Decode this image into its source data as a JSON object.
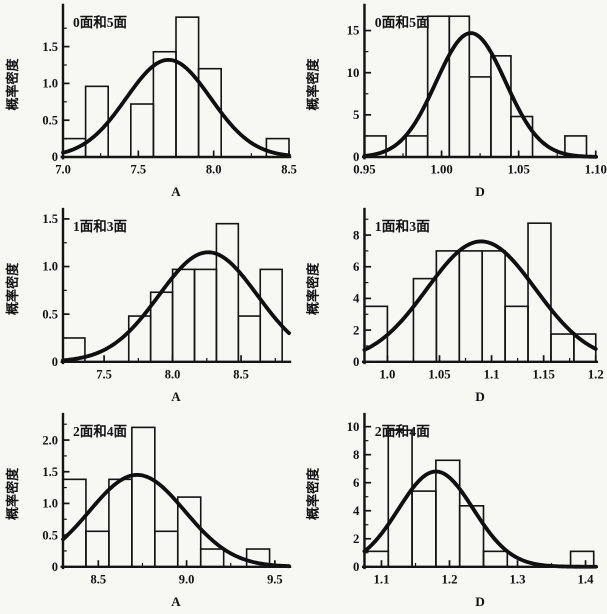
{
  "page": {
    "background": "#f7f7f4",
    "ink_color": "#141414",
    "description_labels": {
      "probability_density": "概率密度",
      "x_axis_A": "A",
      "x_axis_D": "D"
    }
  },
  "chart_data": [
    {
      "type": "bar",
      "overlay": "line",
      "title": "0面和5面",
      "xlabel": "A",
      "ylabel": "概率密度",
      "xlim": [
        7.0,
        8.5
      ],
      "ylim": [
        0,
        1.97
      ],
      "xticks": [
        7.0,
        7.5,
        8.0,
        8.5
      ],
      "xtick_labels": [
        "7.0",
        "7.5",
        "8.0",
        "8.5"
      ],
      "yticks": [
        0,
        0.5,
        1.0,
        1.5
      ],
      "ytick_labels": [
        "0",
        "0.5",
        "1.0",
        "1.5"
      ],
      "grid": false,
      "bars": [
        [
          7.0,
          7.15,
          0.25
        ],
        [
          7.15,
          7.3,
          0.96
        ],
        [
          7.45,
          7.6,
          0.72
        ],
        [
          7.6,
          7.75,
          1.43
        ],
        [
          7.75,
          7.9,
          1.9
        ],
        [
          7.9,
          8.05,
          1.2
        ],
        [
          8.35,
          8.5,
          0.25
        ]
      ],
      "curve": {
        "shape": "gaussian",
        "mu": 7.7,
        "sigma": 0.28,
        "peak": 1.32
      }
    },
    {
      "type": "bar",
      "overlay": "line",
      "title": "0面和5面",
      "xlabel": "D",
      "ylabel": "概率密度",
      "xlim": [
        0.95,
        1.1
      ],
      "ylim": [
        0,
        17.2
      ],
      "xticks": [
        0.95,
        1.0,
        1.05,
        1.1
      ],
      "xtick_labels": [
        "0.95",
        "1.00",
        "1.05",
        "1.10"
      ],
      "yticks": [
        0,
        5,
        10,
        15
      ],
      "ytick_labels": [
        "0",
        "5",
        "10",
        "15"
      ],
      "grid": false,
      "bars": [
        [
          0.95,
          0.964,
          2.5
        ],
        [
          0.977,
          0.991,
          2.5
        ],
        [
          0.991,
          1.005,
          16.7
        ],
        [
          1.005,
          1.018,
          16.7
        ],
        [
          1.018,
          1.032,
          9.5
        ],
        [
          1.032,
          1.045,
          12.0
        ],
        [
          1.045,
          1.059,
          4.8
        ],
        [
          1.08,
          1.094,
          2.5
        ]
      ],
      "curve": {
        "shape": "gaussian",
        "mu": 1.019,
        "sigma": 0.0225,
        "peak": 14.7
      }
    },
    {
      "type": "bar",
      "overlay": "line",
      "title": "1面和3面",
      "xlabel": "A",
      "ylabel": "概率密度",
      "xlim": [
        7.2,
        8.85
      ],
      "ylim": [
        0,
        1.53
      ],
      "xticks": [
        7.5,
        8.0,
        8.5
      ],
      "xtick_labels": [
        "7.5",
        "8.0",
        "8.5"
      ],
      "yticks": [
        0,
        0.5,
        1.0,
        1.5
      ],
      "ytick_labels": [
        "0",
        "0.5",
        "1.0",
        "1.5"
      ],
      "grid": false,
      "bars": [
        [
          7.2,
          7.36,
          0.25
        ],
        [
          7.68,
          7.84,
          0.48
        ],
        [
          7.84,
          8.0,
          0.73
        ],
        [
          8.0,
          8.16,
          0.97
        ],
        [
          8.16,
          8.32,
          0.97
        ],
        [
          8.32,
          8.48,
          1.45
        ],
        [
          8.48,
          8.64,
          0.48
        ],
        [
          8.64,
          8.8,
          0.97
        ]
      ],
      "curve": {
        "shape": "gaussian",
        "mu": 8.26,
        "sigma": 0.36,
        "peak": 1.15
      }
    },
    {
      "type": "bar",
      "overlay": "line",
      "title": "1面和3面",
      "xlabel": "D",
      "ylabel": "概率密度",
      "xlim": [
        0.978,
        1.2
      ],
      "ylim": [
        0,
        9.2
      ],
      "xticks": [
        1.0,
        1.05,
        1.1,
        1.15,
        1.2
      ],
      "xtick_labels": [
        "1.0",
        "1.05",
        "1.1",
        "1.15",
        "1.2"
      ],
      "yticks": [
        0,
        2,
        4,
        6,
        8
      ],
      "ytick_labels": [
        "0",
        "2",
        "4",
        "6",
        "8"
      ],
      "grid": false,
      "bars": [
        [
          0.978,
          1.0,
          3.5
        ],
        [
          1.025,
          1.047,
          5.25
        ],
        [
          1.047,
          1.069,
          7.0
        ],
        [
          1.069,
          1.091,
          7.0
        ],
        [
          1.091,
          1.113,
          7.0
        ],
        [
          1.113,
          1.135,
          3.5
        ],
        [
          1.135,
          1.157,
          8.75
        ],
        [
          1.157,
          1.179,
          1.75
        ],
        [
          1.179,
          1.2,
          1.75
        ]
      ],
      "curve": {
        "shape": "gaussian",
        "mu": 1.09,
        "sigma": 0.052,
        "peak": 7.6
      }
    },
    {
      "type": "bar",
      "overlay": "line",
      "title": "2面和4面",
      "xlabel": "A",
      "ylabel": "概率密度",
      "xlim": [
        8.3,
        9.58
      ],
      "ylim": [
        0,
        2.3
      ],
      "xticks": [
        8.5,
        9.0,
        9.5
      ],
      "xtick_labels": [
        "8.5",
        "9.0",
        "9.5"
      ],
      "yticks": [
        0,
        0.5,
        1.0,
        1.5,
        2.0
      ],
      "ytick_labels": [
        "0",
        "0.5",
        "1.0",
        "1.5",
        "2.0"
      ],
      "grid": false,
      "bars": [
        [
          8.3,
          8.43,
          1.38
        ],
        [
          8.43,
          8.56,
          0.56
        ],
        [
          8.56,
          8.69,
          1.38
        ],
        [
          8.69,
          8.82,
          2.2
        ],
        [
          8.82,
          8.95,
          0.56
        ],
        [
          8.95,
          9.08,
          1.1
        ],
        [
          9.08,
          9.21,
          0.28
        ],
        [
          9.34,
          9.47,
          0.28
        ]
      ],
      "curve": {
        "shape": "gaussian",
        "mu": 8.72,
        "sigma": 0.27,
        "peak": 1.45
      }
    },
    {
      "type": "bar",
      "overlay": "line",
      "title": "2面和4面",
      "xlabel": "D",
      "ylabel": "概率密度",
      "xlim": [
        1.075,
        1.415
      ],
      "ylim": [
        0,
        10.4
      ],
      "xticks": [
        1.1,
        1.2,
        1.3,
        1.4
      ],
      "xtick_labels": [
        "1.1",
        "1.2",
        "1.3",
        "1.4"
      ],
      "yticks": [
        0,
        2,
        4,
        6,
        8,
        10
      ],
      "ytick_labels": [
        "0",
        "2",
        "4",
        "6",
        "8",
        "10"
      ],
      "grid": false,
      "bars": [
        [
          1.075,
          1.11,
          1.1
        ],
        [
          1.11,
          1.145,
          9.75
        ],
        [
          1.145,
          1.18,
          5.4
        ],
        [
          1.18,
          1.215,
          7.6
        ],
        [
          1.215,
          1.25,
          4.35
        ],
        [
          1.25,
          1.285,
          1.1
        ],
        [
          1.378,
          1.412,
          1.1
        ]
      ],
      "curve": {
        "shape": "gaussian",
        "mu": 1.18,
        "sigma": 0.055,
        "peak": 6.8
      }
    }
  ]
}
